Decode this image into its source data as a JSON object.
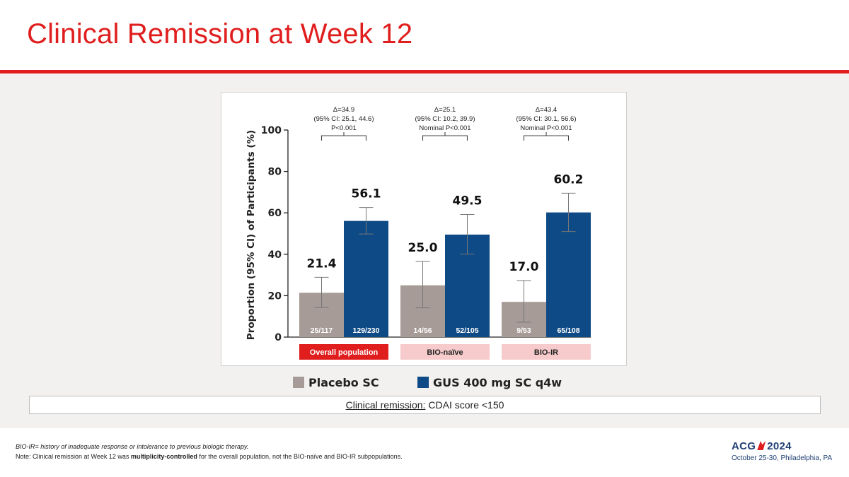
{
  "slide": {
    "title": "Clinical Remission at Week 12",
    "definition_term": "Clinical remission:",
    "definition_text": "CDAI score <150",
    "footnote_1": "BIO-IR= history of inadequate response or intolerance to previous biologic therapy.",
    "footnote_2_prefix": "Note: Clinical remission at Week 12 was ",
    "footnote_2_bold": "multiplicity-controlled",
    "footnote_2_suffix": " for the overall population, not the BIO-naïve and BIO-IR subpopulations.",
    "logo_text_left": "ACG",
    "logo_text_right": "2024",
    "logo_date": "October 25-30, Philadelphia, PA"
  },
  "colors": {
    "brand_red": "#e01e1e",
    "placebo": "#a69b96",
    "gus": "#0e4a85",
    "group_highlight": "#e01e1e",
    "group_pale": "#f7cbcb"
  },
  "chart_data": {
    "type": "bar",
    "ylabel": "Proportion (95% CI) of Participants (%)",
    "ylim": [
      0,
      100
    ],
    "yticks": [
      0,
      20,
      40,
      60,
      80,
      100
    ],
    "categories": [
      "Overall population",
      "BIO-naïve",
      "BIO-IR"
    ],
    "highlighted_category": "Overall population",
    "series": [
      {
        "name": "Placebo SC",
        "color": "#a69b96",
        "values": [
          21.4,
          25.0,
          17.0
        ],
        "value_labels": [
          "21.4",
          "25.0",
          "17.0"
        ],
        "ci_low": [
          14.3,
          14.1,
          7.2
        ],
        "ci_high": [
          28.9,
          36.5,
          27.3
        ],
        "n_labels": [
          "25/117",
          "14/56",
          "9/53"
        ]
      },
      {
        "name": "GUS 400 mg SC q4w",
        "color": "#0e4a85",
        "values": [
          56.1,
          49.5,
          60.2
        ],
        "value_labels": [
          "56.1",
          "49.5",
          "60.2"
        ],
        "ci_low": [
          49.8,
          40.1,
          51.0
        ],
        "ci_high": [
          62.6,
          59.2,
          69.5
        ],
        "n_labels": [
          "129/230",
          "52/105",
          "65/108"
        ]
      }
    ],
    "comparisons": [
      {
        "delta": "Δ=34.9",
        "ci": "(95% CI: 25.1, 44.6)",
        "p": "P<0.001"
      },
      {
        "delta": "Δ=25.1",
        "ci": "(95% CI: 10.2, 39.9)",
        "p": "Nominal P<0.001"
      },
      {
        "delta": "Δ=43.4",
        "ci": "(95% CI: 30.1, 56.6)",
        "p": "Nominal P<0.001"
      }
    ]
  }
}
